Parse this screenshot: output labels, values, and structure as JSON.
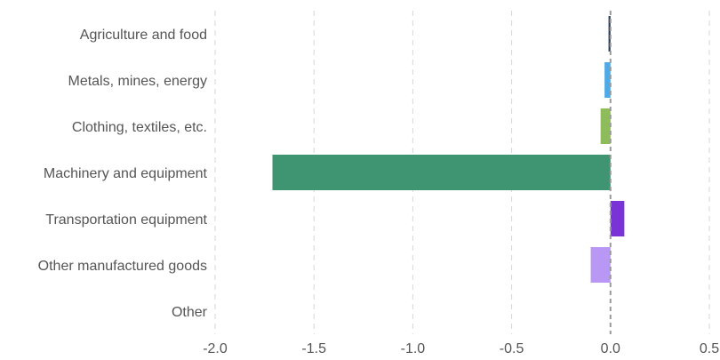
{
  "chart_data": {
    "type": "bar",
    "orientation": "horizontal",
    "title": "",
    "xlabel": "",
    "ylabel": "",
    "xlim": [
      -2.0,
      0.5
    ],
    "xticks": [
      -2.0,
      -1.5,
      -1.0,
      -0.5,
      0.0,
      0.5
    ],
    "xtick_labels": [
      "-2.0",
      "-1.5",
      "-1.0",
      "-0.5",
      "0.0",
      "0.5"
    ],
    "grid": "vertical dashed",
    "legend": "none",
    "categories": [
      "Agriculture and food",
      "Metals, mines, energy",
      "Clothing, textiles, etc.",
      "Machinery and equipment",
      "Transportation equipment",
      "Other manufactured goods",
      "Other"
    ],
    "values": [
      -0.01,
      -0.03,
      -0.05,
      -1.71,
      0.07,
      -0.1,
      0.0
    ],
    "colors": [
      "#2e3f5c",
      "#4ea9e6",
      "#8fbc5a",
      "#3f9471",
      "#7a33d6",
      "#b997f5",
      "#cccccc"
    ]
  }
}
